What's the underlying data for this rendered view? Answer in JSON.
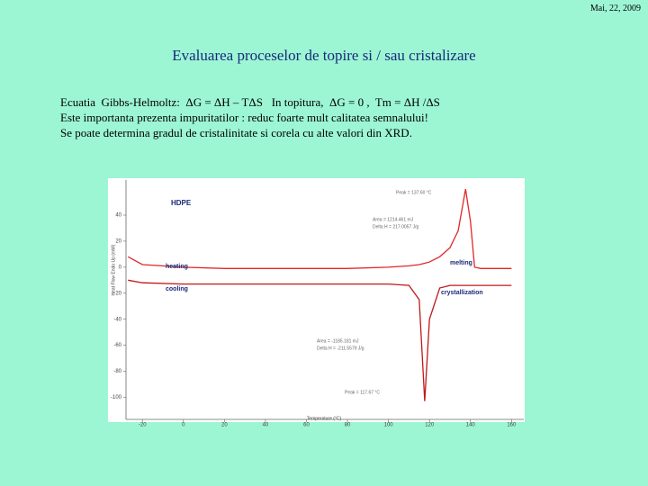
{
  "date": "Mai, 22, 2009",
  "title": "Evaluarea proceselor de topire si / sau cristalizare",
  "lines": [
    "Ecuatia  Gibbs-Helmoltz:  ΔG = ΔH – TΔS   In topitura,  ΔG = 0 ,  Tm = ΔH /ΔS",
    "Este importanta prezenta impuritatilor : reduc foarte mult calitatea semnalului!",
    "Se poate determina gradul de cristalinitate si corela cu alte valori din XRD."
  ],
  "chart_data": {
    "type": "line",
    "x_label": "Temperature (°C)",
    "y_label": "Heat Flow Endo Up (mW)",
    "x": [
      -27,
      -20,
      0,
      20,
      40,
      60,
      80,
      100,
      110,
      115,
      117.67,
      120,
      125,
      130,
      134,
      137.6,
      140,
      142,
      145,
      150,
      160
    ],
    "series": [
      {
        "name": "heating",
        "color": "#e02828",
        "values": [
          8,
          2,
          0,
          -1,
          -1,
          -1,
          -1,
          0,
          1,
          2,
          3,
          4,
          8,
          15,
          28,
          60,
          35,
          0,
          -1,
          -1,
          -1
        ]
      },
      {
        "name": "cooling",
        "color": "#c01818",
        "values": [
          -10,
          -12,
          -13,
          -13,
          -13,
          -13,
          -13,
          -13,
          -14,
          -25,
          -103,
          -40,
          -16,
          -14,
          -14,
          -14,
          -14,
          -14,
          -14,
          -14,
          -14
        ]
      }
    ],
    "xlim": [
      -28,
      166
    ],
    "ylim": [
      -117,
      67
    ],
    "xticks": [
      -20,
      0,
      20,
      40,
      60,
      80,
      100,
      120,
      140,
      160
    ],
    "yticks": [
      40,
      20,
      0,
      -20,
      -40,
      -60,
      -80,
      -100
    ],
    "annotations": [
      "HDPE",
      "melting",
      "crystallization",
      "Peak = 137.60 °C",
      "Area = 1214.461 mJ",
      "Delta H = 217.0057 J/g",
      "Area = -1185.181 mJ",
      "Delta H = -211.5579 J/g",
      "Peak = 117.67 °C"
    ]
  }
}
